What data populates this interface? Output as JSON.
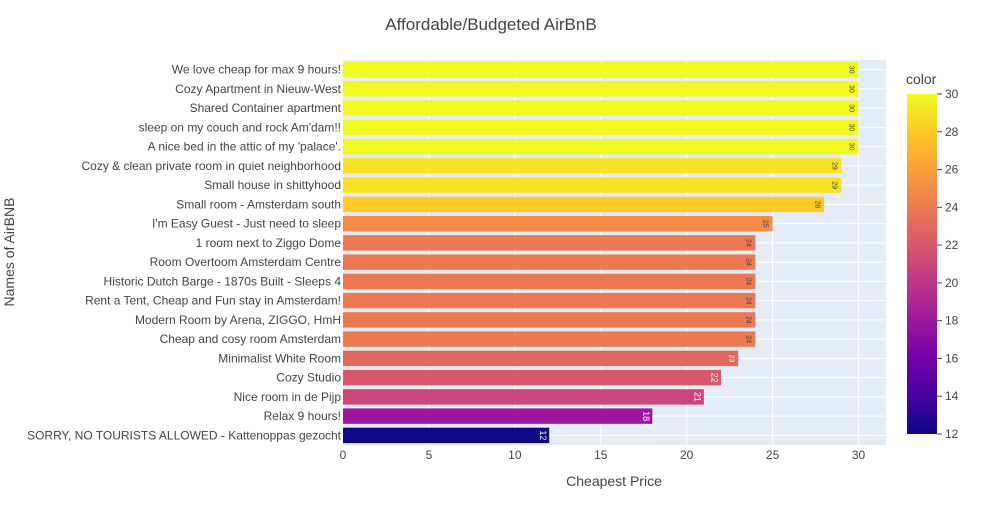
{
  "chart_data": {
    "type": "bar",
    "orientation": "horizontal",
    "title": "Affordable/Budgeted AirBnB",
    "xlabel": "Cheapest Price",
    "ylabel": "Names of AirBNB",
    "xlim": [
      0,
      31.6
    ],
    "x_ticks": [
      0,
      5,
      10,
      15,
      20,
      25,
      30
    ],
    "grid": true,
    "categories": [
      "We love cheap for max 9 hours!",
      "Cozy Apartment in Nieuw-West",
      "Shared Container apartment",
      "sleep on my couch and rock Am'dam!!",
      "A nice bed in the attic of my 'palace'.",
      "Cozy & clean private room in quiet neighborhood",
      "Small house in shittyhood",
      "Small room - Amsterdam south",
      "I'm Easy Guest - Just need to sleep",
      "1 room next to Ziggo Dome",
      "Room Overtoom Amsterdam Centre",
      "Historic Dutch Barge - 1870s Built - Sleeps 4",
      "Rent a Tent, Cheap and Fun stay in Amsterdam!",
      "Modern Room by Arena, ZIGGO, HmH",
      "Cheap and cosy room Amsterdam",
      "Minimalist White Room",
      "Cozy Studio",
      "Nice room in de Pijp",
      "Relax 9 hours!",
      "SORRY, NO TOURISTS ALLOWED - Kattenoppas gezocht"
    ],
    "values": [
      30,
      30,
      30,
      30,
      30,
      29,
      29,
      28,
      25,
      24,
      24,
      24,
      24,
      24,
      24,
      23,
      22,
      21,
      18,
      12
    ],
    "colorbar": {
      "title": "color",
      "min": 12,
      "max": 30,
      "ticks": [
        12,
        14,
        16,
        18,
        20,
        22,
        24,
        26,
        28,
        30
      ],
      "colorscale": [
        "#0d0887",
        "#46039f",
        "#7201a8",
        "#9c179e",
        "#bd3786",
        "#d8576b",
        "#ed7953",
        "#fb9f3a",
        "#fdca26",
        "#f0f921"
      ]
    },
    "plot_background": "#e5ecf6"
  }
}
